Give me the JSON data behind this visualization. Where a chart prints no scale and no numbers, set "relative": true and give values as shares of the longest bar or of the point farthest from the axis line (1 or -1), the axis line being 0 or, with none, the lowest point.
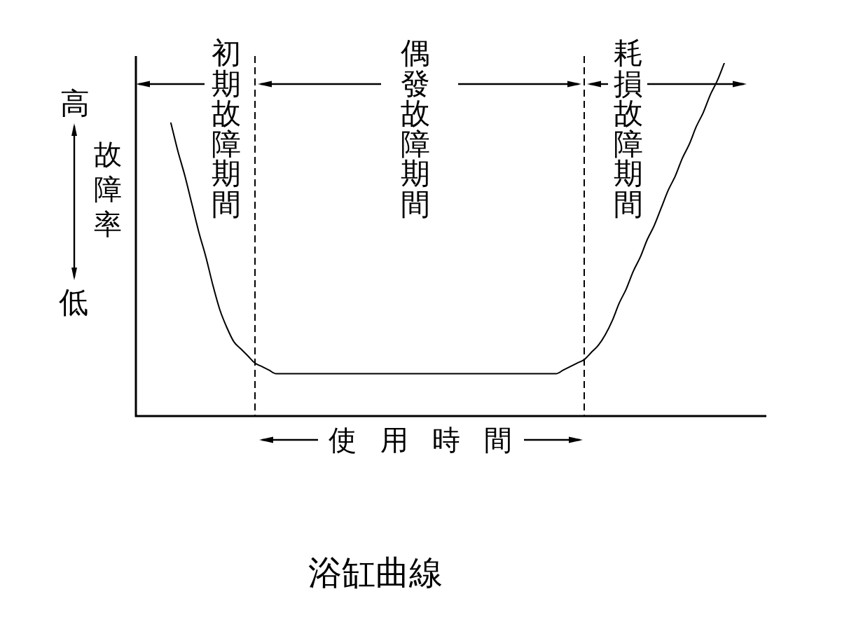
{
  "chart_data": {
    "type": "line",
    "title": "浴缸曲線",
    "xlabel": "使用時間",
    "ylabel": "故障率",
    "annotations": [
      "初期故障期間",
      "偶發故障期間",
      "耗損故障期間",
      "高",
      "低"
    ],
    "relative": true,
    "marker": "none",
    "categories": [
      null,
      null,
      null,
      null,
      null,
      null,
      null,
      null,
      null,
      null,
      null,
      null,
      null,
      null,
      null,
      null,
      null,
      null,
      null,
      null,
      null,
      null,
      null,
      null,
      null,
      null,
      null,
      null,
      null,
      null,
      null,
      null,
      null,
      null,
      null,
      null,
      null,
      null,
      null,
      null,
      null,
      null,
      null,
      null,
      null,
      null,
      null,
      null,
      null,
      null,
      null,
      null,
      null,
      null,
      null,
      null,
      null,
      null,
      null,
      null,
      null,
      null,
      null,
      null,
      null,
      null,
      null,
      null,
      null,
      null,
      null,
      null,
      null,
      null,
      null,
      null,
      null,
      null,
      null,
      null,
      null,
      null,
      null,
      null,
      null,
      null,
      null,
      null,
      null,
      null,
      null
    ],
    "series": [
      {
        "color": "#000000",
        "values": [
          null,
          null,
          null,
          null,
          null,
          0.83,
          0.75,
          0.68,
          0.6,
          0.52,
          0.45,
          0.37,
          0.3,
          0.25,
          0.21,
          0.19,
          0.17,
          0.15,
          0.14,
          0.13,
          0.12,
          0.12,
          0.12,
          0.12,
          0.12,
          0.12,
          0.12,
          0.12,
          0.12,
          0.12,
          0.12,
          0.12,
          0.12,
          0.12,
          0.12,
          0.12,
          0.12,
          0.12,
          0.12,
          0.12,
          0.12,
          0.12,
          0.12,
          0.12,
          0.12,
          0.12,
          0.12,
          0.12,
          0.12,
          0.12,
          0.12,
          0.12,
          0.12,
          0.12,
          0.12,
          0.12,
          0.12,
          0.12,
          0.12,
          0.12,
          0.12,
          0.13,
          0.14,
          0.15,
          0.16,
          0.18,
          0.2,
          0.23,
          0.27,
          0.32,
          0.36,
          0.41,
          0.45,
          0.5,
          0.54,
          0.59,
          0.64,
          0.68,
          0.73,
          0.77,
          0.82,
          0.86,
          0.91,
          0.95,
          1,
          null,
          null,
          null,
          null,
          null,
          null
        ]
      }
    ]
  }
}
